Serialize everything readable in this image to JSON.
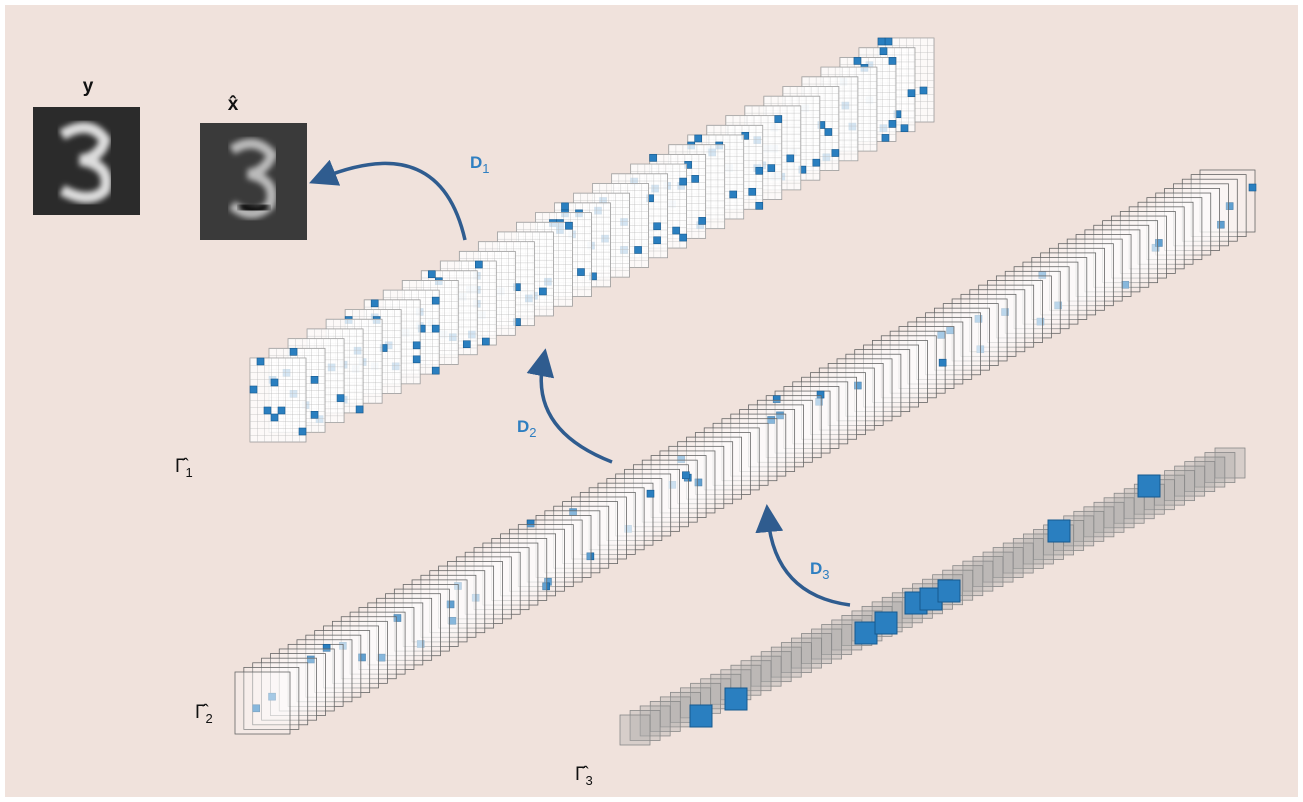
{
  "images": [
    {
      "label": "y"
    },
    {
      "label": "x̂"
    }
  ],
  "dictionaries": [
    {
      "symbol": "D",
      "subscript": "1"
    },
    {
      "symbol": "D",
      "subscript": "2"
    },
    {
      "symbol": "D",
      "subscript": "3"
    }
  ],
  "representations": [
    {
      "symbol": "Γ̂",
      "subscript": "1"
    },
    {
      "symbol": "Γ̂",
      "subscript": "2"
    },
    {
      "symbol": "Γ̂",
      "subscript": "3"
    }
  ]
}
